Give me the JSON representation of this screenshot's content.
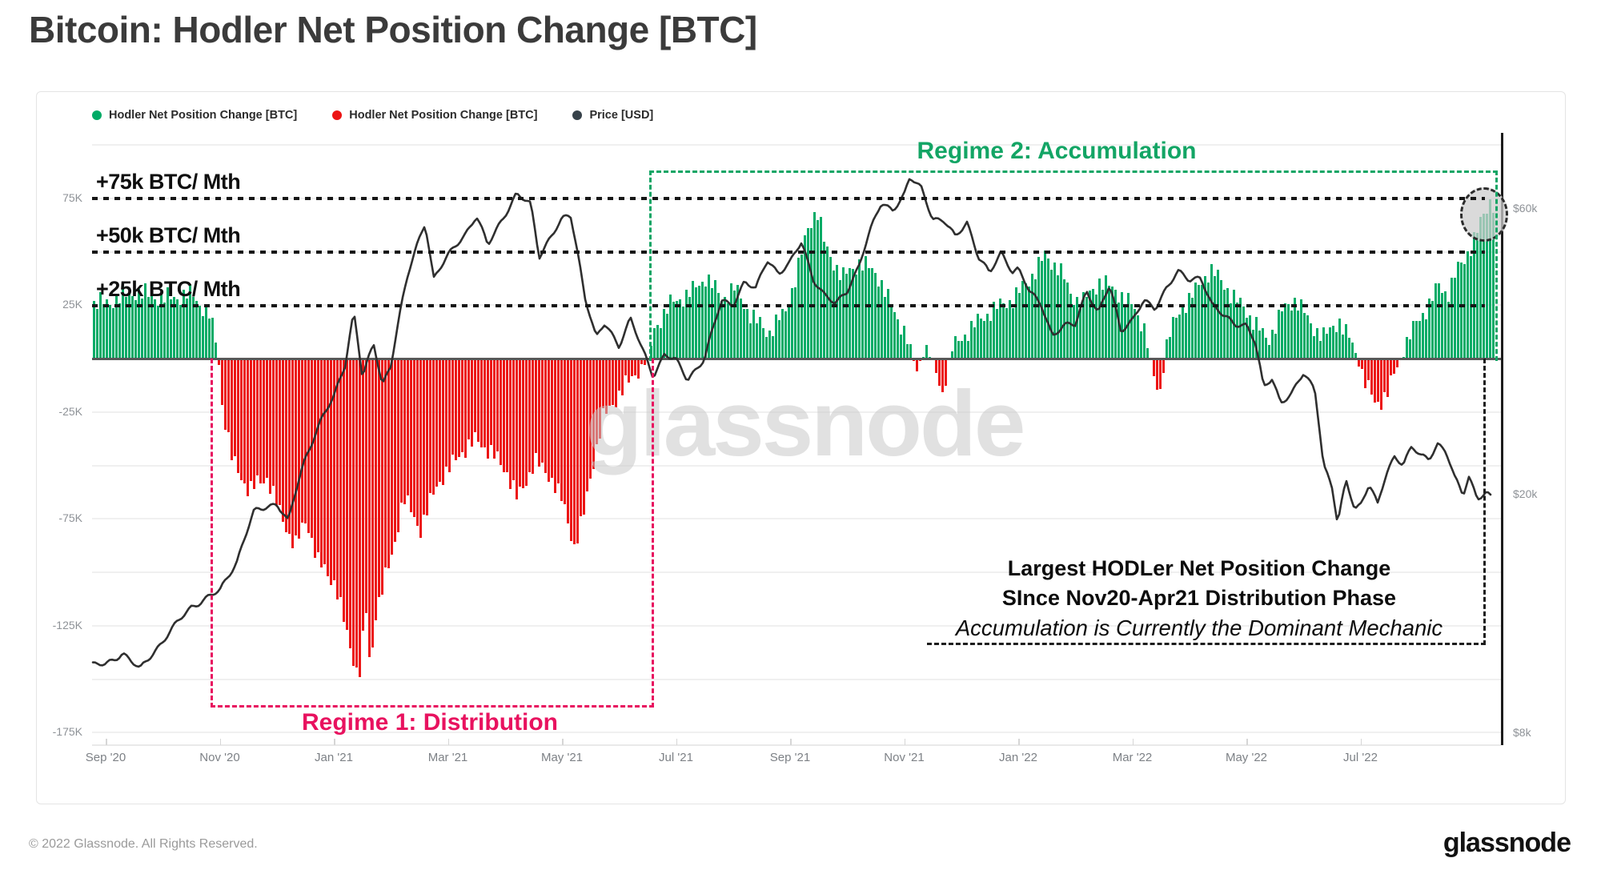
{
  "page": {
    "title": "Bitcoin: Hodler Net Position Change [BTC]",
    "watermark": "glassnode",
    "footer_left": "© 2022 Glassnode. All Rights Reserved.",
    "footer_logo": "glassnode"
  },
  "legend": [
    {
      "label": "Hodler Net Position Change [BTC]",
      "color": "#00ab66"
    },
    {
      "label": "Hodler Net Position Change [BTC]",
      "color": "#ec1313"
    },
    {
      "label": "Price [USD]",
      "color": "#37424a"
    }
  ],
  "annotations": {
    "thresholds": [
      {
        "value_k": 75,
        "label": "+75k BTC/ Mth"
      },
      {
        "value_k": 50,
        "label": "+50k BTC/ Mth"
      },
      {
        "value_k": 25,
        "label": "+25k BTC/ Mth"
      }
    ],
    "regime1": {
      "label": "Regime 1: Distribution",
      "color": "#e8125f",
      "period": "Nov 2020 - mid Jun 2021"
    },
    "regime2": {
      "label": "Regime 2: Accumulation",
      "color": "#13a565",
      "period": "mid Jun 2021 - Sep 2022"
    },
    "note": {
      "line1": "Largest HODLer Net Position Change",
      "line2": "SInce Nov20-Apr21 Distribution Phase",
      "line3": "Accumulation is Currently the Dominant Mechanic"
    },
    "highlight_circle": "latest-bars-highlight"
  },
  "chart_data": {
    "type": "combo",
    "title": "Bitcoin: Hodler Net Position Change [BTC]",
    "month_index_note": "t is months since Sep 1 2020; bar values in thousand BTC per month; price in thousand USD (log right axis)",
    "left_axis": {
      "unit": "BTC / month (thousands)",
      "range_k": [
        -175,
        100
      ],
      "gridline_step_k": 25,
      "ticks": [
        {
          "value_k": 75,
          "label": "75K"
        },
        {
          "value_k": 25,
          "label": "25K"
        },
        {
          "value_k": -25,
          "label": "-25K"
        },
        {
          "value_k": -75,
          "label": "-75K"
        },
        {
          "value_k": -125,
          "label": "-125K"
        },
        {
          "value_k": -175,
          "label": "-175K"
        }
      ]
    },
    "right_axis": {
      "unit": "USD",
      "scale": "log",
      "ticks": [
        {
          "value_k": 60,
          "label": "$60k"
        },
        {
          "value_k": 20,
          "label": "$20k"
        },
        {
          "value_k": 8,
          "label": "$8k"
        }
      ]
    },
    "x_axis": {
      "ticks": [
        "Sep '20",
        "Nov '20",
        "Jan '21",
        "Mar '21",
        "May '21",
        "Jul '21",
        "Sep '21",
        "Nov '21",
        "Jan '22",
        "Mar '22",
        "May '22",
        "Jul '22"
      ]
    },
    "series": [
      {
        "name": "Hodler Net Position Change [BTC]",
        "type": "bar",
        "color_positive": "#00ab66",
        "color_negative": "#ec1313",
        "keypoints_t_v": [
          [
            0,
            26
          ],
          [
            0.5,
            31
          ],
          [
            1,
            28
          ],
          [
            1.5,
            30
          ],
          [
            1.8,
            20
          ],
          [
            1.95,
            4
          ],
          [
            2.0,
            -18
          ],
          [
            2.2,
            -48
          ],
          [
            2.5,
            -62
          ],
          [
            2.8,
            -55
          ],
          [
            3.0,
            -70
          ],
          [
            3.3,
            -88
          ],
          [
            3.5,
            -75
          ],
          [
            3.7,
            -95
          ],
          [
            4.0,
            -105
          ],
          [
            4.2,
            -128
          ],
          [
            4.42,
            -150
          ],
          [
            4.55,
            -118
          ],
          [
            4.62,
            -148
          ],
          [
            4.7,
            -120
          ],
          [
            5.0,
            -92
          ],
          [
            5.2,
            -65
          ],
          [
            5.5,
            -80
          ],
          [
            5.8,
            -58
          ],
          [
            6.0,
            -52
          ],
          [
            6.2,
            -44
          ],
          [
            6.5,
            -38
          ],
          [
            6.8,
            -46
          ],
          [
            7.0,
            -52
          ],
          [
            7.2,
            -66
          ],
          [
            7.5,
            -48
          ],
          [
            7.8,
            -56
          ],
          [
            8.0,
            -68
          ],
          [
            8.2,
            -88
          ],
          [
            8.35,
            -75
          ],
          [
            8.5,
            -52
          ],
          [
            8.7,
            -28
          ],
          [
            9.0,
            -16
          ],
          [
            9.3,
            -6
          ],
          [
            9.5,
            0
          ],
          [
            9.6,
            14
          ],
          [
            9.9,
            26
          ],
          [
            10.2,
            30
          ],
          [
            10.5,
            38
          ],
          [
            10.8,
            28
          ],
          [
            11.0,
            33
          ],
          [
            11.3,
            20
          ],
          [
            11.6,
            12
          ],
          [
            11.9,
            22
          ],
          [
            12.1,
            40
          ],
          [
            12.3,
            62
          ],
          [
            12.45,
            70
          ],
          [
            12.6,
            52
          ],
          [
            12.9,
            38
          ],
          [
            13.2,
            45
          ],
          [
            13.5,
            40
          ],
          [
            13.8,
            22
          ],
          [
            14.0,
            12
          ],
          [
            14.2,
            -6
          ],
          [
            14.35,
            6
          ],
          [
            14.5,
            -4
          ],
          [
            14.65,
            -16
          ],
          [
            14.8,
            4
          ],
          [
            15.0,
            10
          ],
          [
            15.3,
            18
          ],
          [
            15.6,
            24
          ],
          [
            15.9,
            28
          ],
          [
            16.2,
            38
          ],
          [
            16.45,
            48
          ],
          [
            16.7,
            42
          ],
          [
            16.9,
            30
          ],
          [
            17.1,
            26
          ],
          [
            17.4,
            36
          ],
          [
            17.7,
            32
          ],
          [
            18.0,
            24
          ],
          [
            18.2,
            14
          ],
          [
            18.35,
            -8
          ],
          [
            18.45,
            -18
          ],
          [
            18.6,
            10
          ],
          [
            18.85,
            24
          ],
          [
            19.1,
            32
          ],
          [
            19.35,
            42
          ],
          [
            19.6,
            34
          ],
          [
            19.85,
            26
          ],
          [
            20.1,
            18
          ],
          [
            20.35,
            8
          ],
          [
            20.6,
            22
          ],
          [
            20.85,
            28
          ],
          [
            21.1,
            16
          ],
          [
            21.35,
            10
          ],
          [
            21.6,
            18
          ],
          [
            21.85,
            6
          ],
          [
            22.05,
            -10
          ],
          [
            22.25,
            -22
          ],
          [
            22.45,
            -16
          ],
          [
            22.6,
            -6
          ],
          [
            22.75,
            6
          ],
          [
            22.95,
            16
          ],
          [
            23.15,
            24
          ],
          [
            23.35,
            34
          ],
          [
            23.5,
            30
          ],
          [
            23.65,
            40
          ],
          [
            23.8,
            46
          ],
          [
            23.95,
            55
          ],
          [
            24.1,
            64
          ],
          [
            24.25,
            74
          ],
          [
            24.36,
            72
          ]
        ]
      },
      {
        "name": "Price [USD]",
        "type": "line",
        "color": "#2f2f2f",
        "keypoints_t_usd_k": [
          [
            0,
            10.4
          ],
          [
            0.3,
            10.9
          ],
          [
            0.6,
            10.2
          ],
          [
            1.0,
            11.4
          ],
          [
            1.5,
            13.0
          ],
          [
            1.8,
            13.5
          ],
          [
            2.0,
            13.8
          ],
          [
            2.3,
            15.5
          ],
          [
            2.6,
            18.7
          ],
          [
            3.0,
            19.4
          ],
          [
            3.2,
            18.0
          ],
          [
            3.5,
            23.0
          ],
          [
            3.8,
            27.0
          ],
          [
            4.0,
            29.0
          ],
          [
            4.2,
            33.0
          ],
          [
            4.35,
            40.5
          ],
          [
            4.5,
            31.5
          ],
          [
            4.7,
            35.5
          ],
          [
            4.85,
            30.5
          ],
          [
            5.0,
            33.0
          ],
          [
            5.3,
            46.5
          ],
          [
            5.6,
            57.0
          ],
          [
            5.75,
            46.0
          ],
          [
            6.0,
            50.0
          ],
          [
            6.3,
            54.5
          ],
          [
            6.5,
            58.5
          ],
          [
            6.7,
            52.0
          ],
          [
            7.0,
            58.8
          ],
          [
            7.2,
            63.5
          ],
          [
            7.45,
            61.0
          ],
          [
            7.6,
            50.0
          ],
          [
            7.8,
            54.0
          ],
          [
            8.0,
            57.5
          ],
          [
            8.15,
            58.5
          ],
          [
            8.4,
            43.0
          ],
          [
            8.6,
            36.5
          ],
          [
            8.75,
            38.5
          ],
          [
            9.0,
            35.5
          ],
          [
            9.2,
            39.5
          ],
          [
            9.4,
            35.0
          ],
          [
            9.6,
            31.5
          ],
          [
            9.8,
            34.5
          ],
          [
            10.0,
            33.5
          ],
          [
            10.2,
            31.0
          ],
          [
            10.5,
            33.9
          ],
          [
            10.8,
            42.0
          ],
          [
            11.0,
            41.5
          ],
          [
            11.2,
            45.5
          ],
          [
            11.4,
            44.0
          ],
          [
            11.6,
            49.3
          ],
          [
            11.8,
            47.0
          ],
          [
            12.0,
            48.8
          ],
          [
            12.2,
            52.7
          ],
          [
            12.4,
            46.0
          ],
          [
            12.6,
            43.2
          ],
          [
            12.8,
            41.5
          ],
          [
            13.0,
            43.8
          ],
          [
            13.2,
            48.2
          ],
          [
            13.4,
            54.9
          ],
          [
            13.6,
            61.3
          ],
          [
            13.8,
            60.0
          ],
          [
            14.0,
            63.3
          ],
          [
            14.1,
            67.5
          ],
          [
            14.3,
            65.0
          ],
          [
            14.5,
            58.0
          ],
          [
            14.7,
            57.3
          ],
          [
            14.9,
            53.7
          ],
          [
            15.1,
            57.2
          ],
          [
            15.3,
            50.0
          ],
          [
            15.5,
            46.7
          ],
          [
            15.7,
            50.8
          ],
          [
            15.9,
            47.3
          ],
          [
            16.0,
            47.7
          ],
          [
            16.2,
            43.5
          ],
          [
            16.4,
            41.7
          ],
          [
            16.6,
            36.9
          ],
          [
            16.8,
            38.2
          ],
          [
            17.0,
            38.5
          ],
          [
            17.2,
            44.0
          ],
          [
            17.4,
            40.1
          ],
          [
            17.6,
            44.6
          ],
          [
            17.8,
            37.7
          ],
          [
            18.0,
            39.2
          ],
          [
            18.2,
            42.0
          ],
          [
            18.4,
            40.9
          ],
          [
            18.6,
            44.5
          ],
          [
            18.8,
            47.1
          ],
          [
            19.0,
            45.5
          ],
          [
            19.2,
            46.3
          ],
          [
            19.4,
            41.5
          ],
          [
            19.6,
            39.7
          ],
          [
            19.8,
            38.6
          ],
          [
            20.0,
            38.5
          ],
          [
            20.15,
            36.0
          ],
          [
            20.3,
            30.1
          ],
          [
            20.45,
            31.3
          ],
          [
            20.6,
            28.6
          ],
          [
            20.8,
            29.5
          ],
          [
            21.0,
            31.8
          ],
          [
            21.2,
            30.1
          ],
          [
            21.35,
            22.5
          ],
          [
            21.5,
            20.6
          ],
          [
            21.6,
            17.8
          ],
          [
            21.75,
            21.1
          ],
          [
            21.9,
            19.0
          ],
          [
            22.0,
            19.3
          ],
          [
            22.15,
            20.8
          ],
          [
            22.3,
            19.2
          ],
          [
            22.45,
            21.6
          ],
          [
            22.6,
            23.3
          ],
          [
            22.75,
            22.5
          ],
          [
            22.9,
            24.0
          ],
          [
            23.05,
            23.2
          ],
          [
            23.2,
            23.0
          ],
          [
            23.35,
            24.4
          ],
          [
            23.5,
            23.6
          ],
          [
            23.65,
            21.3
          ],
          [
            23.8,
            20.0
          ],
          [
            23.9,
            21.5
          ],
          [
            24.05,
            19.8
          ],
          [
            24.2,
            20.1
          ],
          [
            24.36,
            19.5
          ]
        ]
      }
    ]
  }
}
